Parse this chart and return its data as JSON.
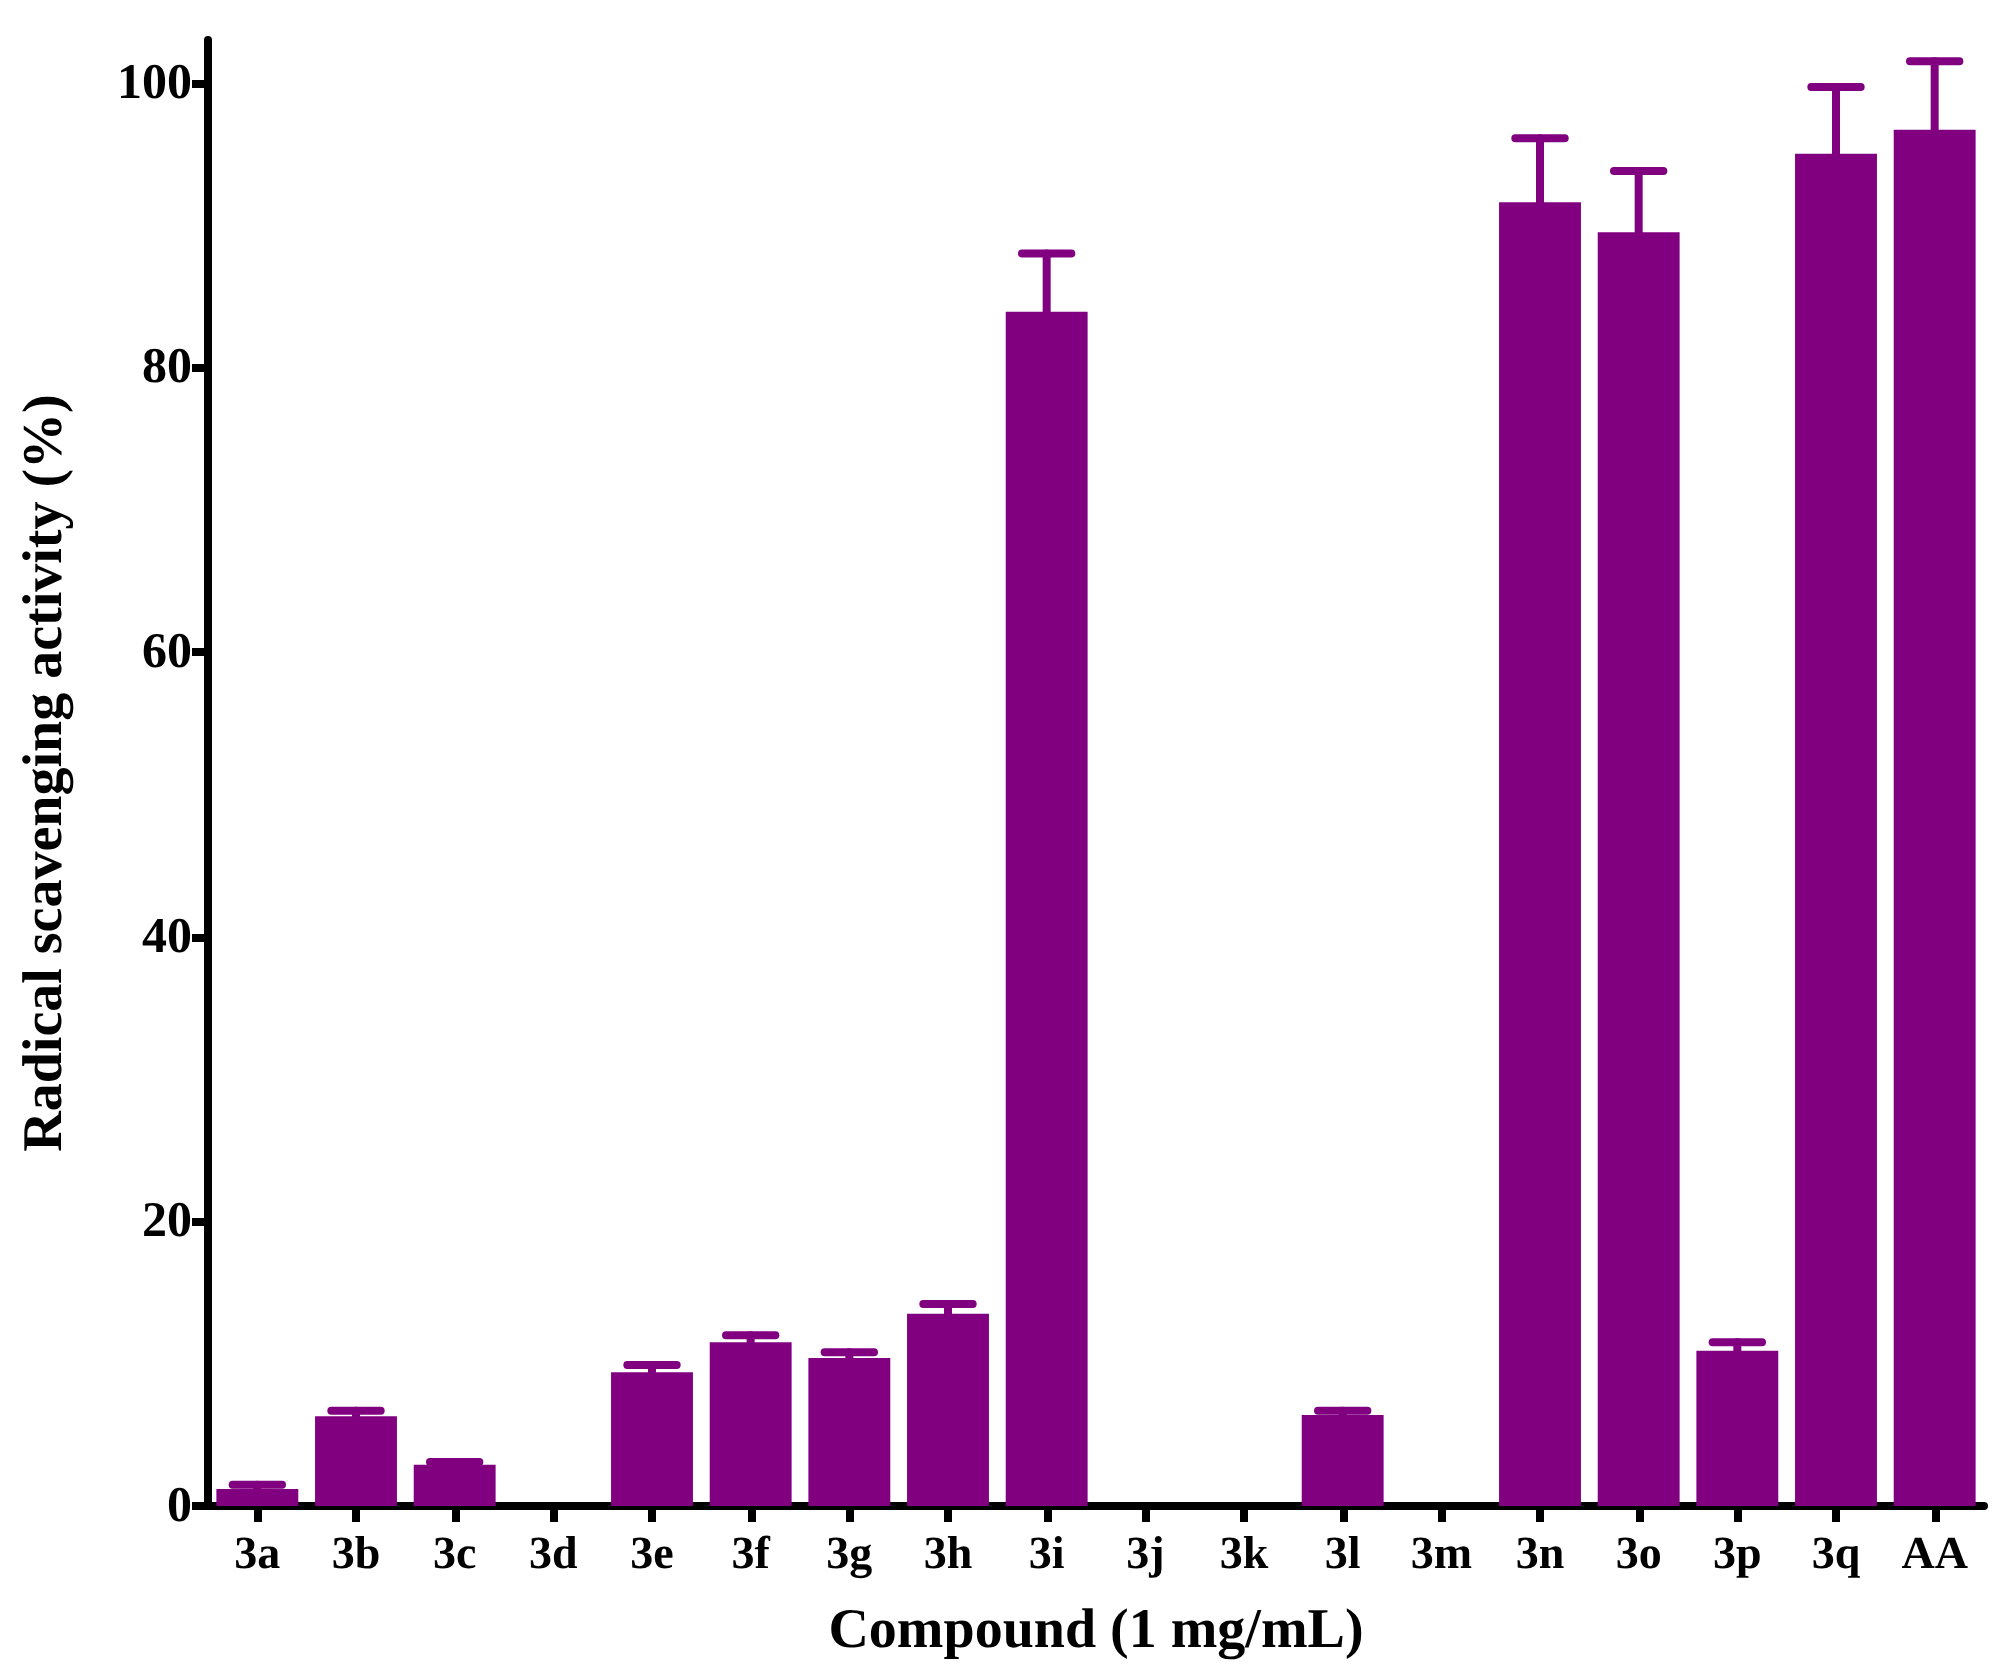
{
  "chart_data": {
    "type": "bar",
    "xlabel": "Compound (1 mg/mL)",
    "ylabel": "Radical scavenging activity (%)",
    "categories": [
      "3a",
      "3b",
      "3c",
      "3d",
      "3e",
      "3f",
      "3g",
      "3h",
      "3i",
      "3j",
      "3k",
      "3l",
      "3m",
      "3n",
      "3o",
      "3p",
      "3q",
      "AA"
    ],
    "values": [
      1.2,
      6.3,
      2.9,
      0,
      9.4,
      11.5,
      10.4,
      13.5,
      83.9,
      0,
      0,
      6.4,
      0,
      91.6,
      89.5,
      10.9,
      95.0,
      96.7
    ],
    "errors": [
      [
        1.2,
        1.5
      ],
      [
        6.3,
        6.7
      ],
      [
        2.9,
        3.1
      ],
      null,
      [
        9.4,
        9.9
      ],
      [
        11.5,
        12.0
      ],
      [
        10.4,
        10.8
      ],
      [
        13.5,
        14.2
      ],
      [
        83.9,
        88.0
      ],
      null,
      null,
      [
        6.4,
        6.7
      ],
      null,
      [
        91.6,
        96.1
      ],
      [
        89.5,
        93.8
      ],
      [
        10.9,
        11.5
      ],
      [
        95.0,
        99.7
      ],
      [
        96.7,
        101.5
      ]
    ],
    "color": "#800080",
    "ylim": [
      0,
      103
    ],
    "yticks": [
      0,
      20,
      40,
      60,
      80,
      100
    ]
  }
}
